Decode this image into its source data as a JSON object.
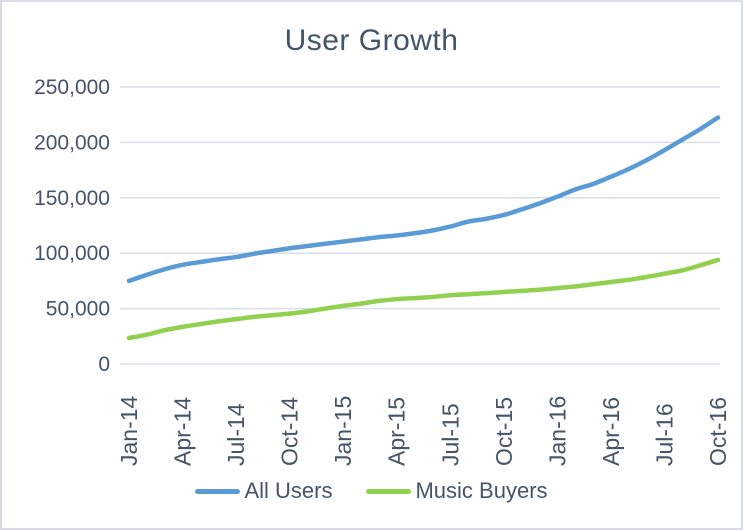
{
  "chart_data": {
    "type": "line",
    "title": "User Growth",
    "x": [
      "Jan-14",
      "Feb-14",
      "Mar-14",
      "Apr-14",
      "May-14",
      "Jun-14",
      "Jul-14",
      "Aug-14",
      "Sep-14",
      "Oct-14",
      "Nov-14",
      "Dec-14",
      "Jan-15",
      "Feb-15",
      "Mar-15",
      "Apr-15",
      "May-15",
      "Jun-15",
      "Jul-15",
      "Aug-15",
      "Sep-15",
      "Oct-15",
      "Nov-15",
      "Dec-15",
      "Jan-16",
      "Feb-16",
      "Mar-16",
      "Apr-16",
      "May-16",
      "Jun-16",
      "Jul-16",
      "Aug-16",
      "Sep-16",
      "Oct-16"
    ],
    "x_tick_labels": [
      "Jan-14",
      "Apr-14",
      "Jul-14",
      "Oct-14",
      "Jan-15",
      "Apr-15",
      "Jul-15",
      "Oct-15",
      "Jan-16",
      "Apr-16",
      "Jul-16",
      "Oct-16"
    ],
    "x_tick_every_n_points": 3,
    "ylim": [
      0,
      250000
    ],
    "y_ticks": [
      {
        "value": 0,
        "label": "0"
      },
      {
        "value": 50000,
        "label": "50,000"
      },
      {
        "value": 100000,
        "label": "100,000"
      },
      {
        "value": 150000,
        "label": "150,000"
      },
      {
        "value": 200000,
        "label": "200,000"
      },
      {
        "value": 250000,
        "label": "250,000"
      }
    ],
    "grid": "horizontal",
    "legend_position": "bottom",
    "series": [
      {
        "name": "All Users",
        "slug": "all-users",
        "color": "#5B9BD5",
        "values": [
          75000,
          80500,
          85500,
          89500,
          92000,
          94500,
          96500,
          99500,
          102000,
          104500,
          106500,
          108500,
          110500,
          112500,
          114500,
          116000,
          118000,
          120500,
          124000,
          128500,
          131000,
          134500,
          139500,
          145000,
          151000,
          157500,
          162500,
          169000,
          176000,
          184000,
          193000,
          202500,
          212000,
          222500
        ]
      },
      {
        "name": "Music Buyers",
        "slug": "music-buyers",
        "color": "#92D050",
        "values": [
          23500,
          26500,
          30500,
          33500,
          36000,
          38500,
          40500,
          42500,
          44000,
          45500,
          47500,
          50000,
          52500,
          54500,
          57000,
          58500,
          59500,
          60500,
          62000,
          63000,
          64000,
          65000,
          66000,
          67000,
          68500,
          70000,
          72000,
          74000,
          76000,
          78500,
          81500,
          84500,
          89000,
          94000
        ]
      }
    ],
    "colors": {
      "text": "#44546A",
      "gridline": "#D9DEE7",
      "frame_border": "#D7DCE3",
      "background": "#FFFFFF"
    }
  }
}
